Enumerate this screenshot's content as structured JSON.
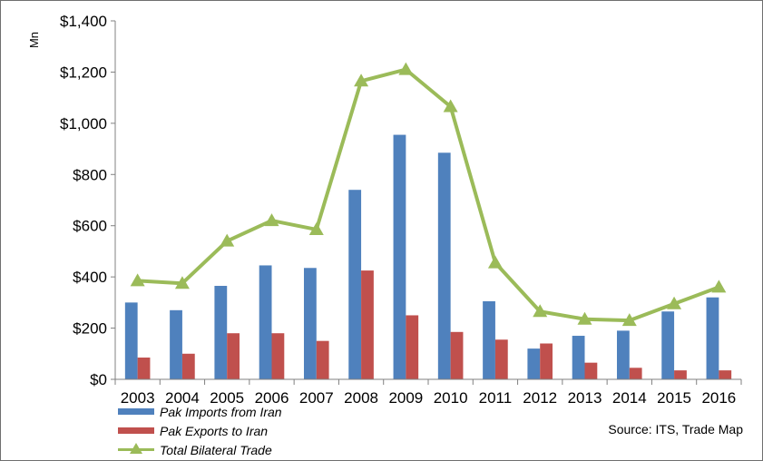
{
  "chart_data": {
    "type": "bar",
    "categories": [
      "2003",
      "2004",
      "2005",
      "2006",
      "2007",
      "2008",
      "2009",
      "2010",
      "2011",
      "2012",
      "2013",
      "2014",
      "2015",
      "2016"
    ],
    "series": [
      {
        "name": "Pak Imports from Iran",
        "type": "bar",
        "color": "#4f81bd",
        "values": [
          300,
          270,
          365,
          445,
          435,
          740,
          955,
          885,
          305,
          120,
          170,
          190,
          265,
          320
        ]
      },
      {
        "name": "Pak Exports to Iran",
        "type": "bar",
        "color": "#c0504d",
        "values": [
          85,
          100,
          180,
          180,
          150,
          425,
          250,
          185,
          155,
          140,
          65,
          45,
          35,
          35
        ]
      },
      {
        "name": "Total Bilateral Trade",
        "type": "line",
        "marker": "triangle",
        "color": "#9bbb59",
        "values": [
          385,
          375,
          540,
          620,
          585,
          1165,
          1210,
          1065,
          455,
          265,
          235,
          230,
          295,
          360
        ]
      }
    ],
    "ylabel": "Mn",
    "ylim": [
      0,
      1400
    ],
    "yticks": [
      "$0",
      "$200",
      "$400",
      "$600",
      "$800",
      "$1,000",
      "$1,200",
      "$1,400"
    ],
    "grid": false,
    "legend_position": "bottom-left"
  },
  "source_note": "Source: ITS, Trade Map"
}
